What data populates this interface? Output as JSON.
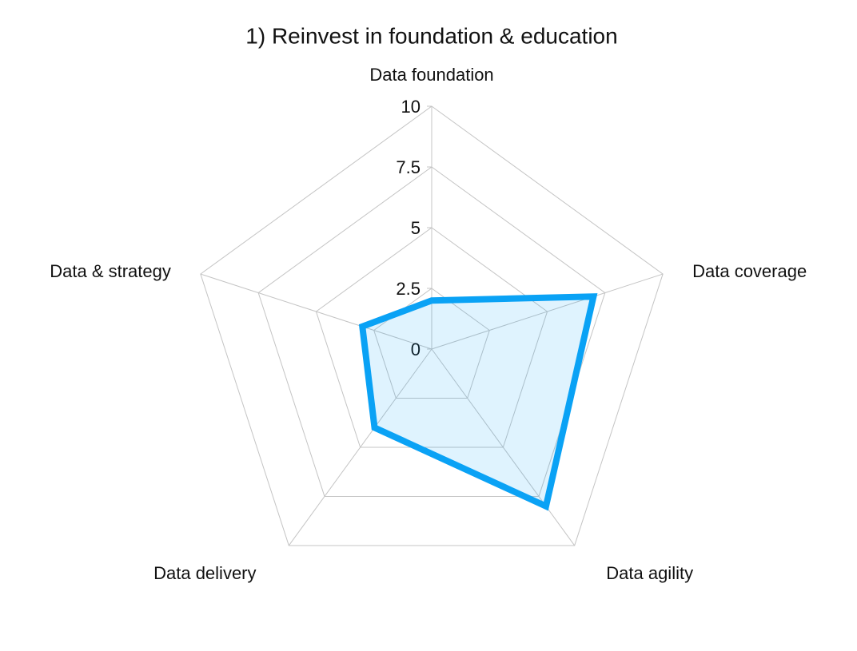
{
  "chart_data": {
    "type": "radar",
    "title": "1) Reinvest in foundation & education",
    "categories": [
      "Data foundation",
      "Data coverage",
      "Data agility",
      "Data delivery",
      "Data & strategy"
    ],
    "series": [
      {
        "name": "1) Reinvest in foundation & education",
        "color": "#0aa2f5",
        "values": [
          2,
          7,
          8,
          4,
          3
        ]
      }
    ],
    "ylim": [
      0,
      10
    ],
    "yticks": [
      0,
      2.5,
      5,
      7.5,
      10
    ],
    "grid": true
  }
}
